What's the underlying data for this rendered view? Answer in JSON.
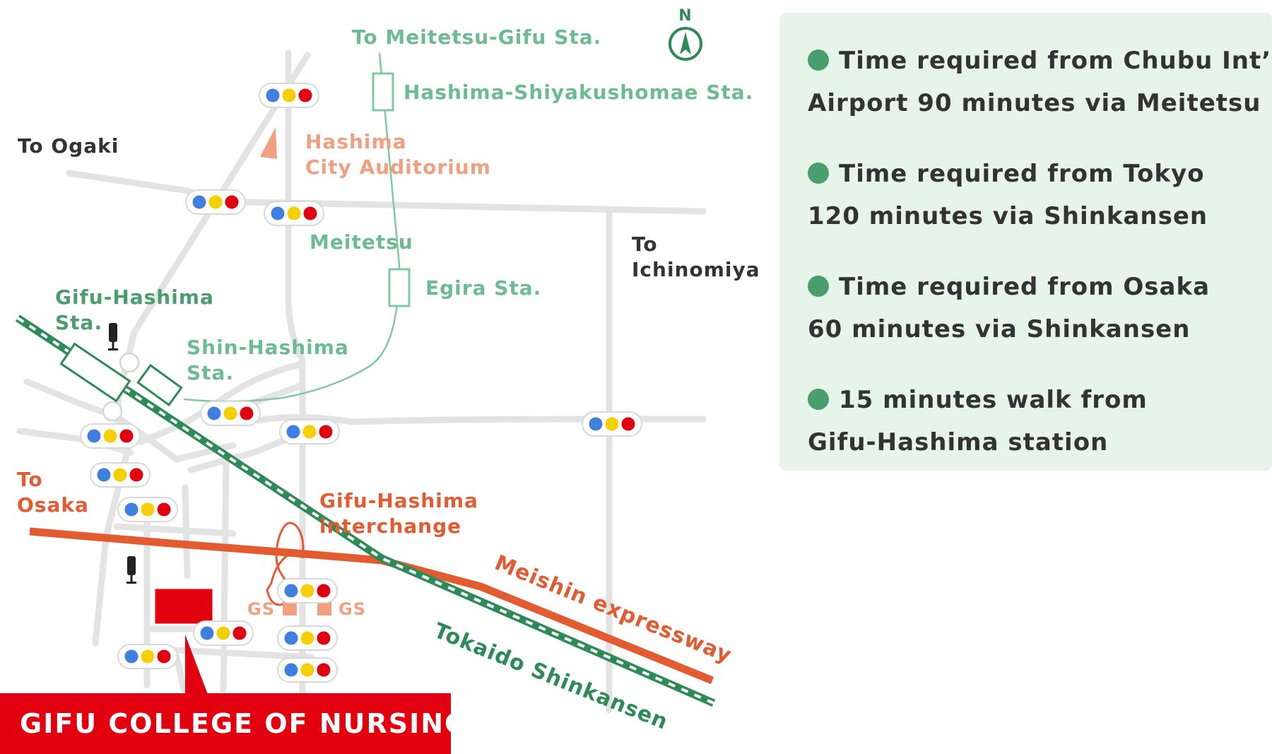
{
  "map": {
    "north_label": "N",
    "stations": {
      "meitetsu_gifu": "To Meitetsu-Gifu Sta.",
      "hashima_shiyakushomae": "Hashima-Shiyakushomae Sta.",
      "egira": "Egira Sta.",
      "gifu_hashima_l1": "Gifu-Hashima",
      "gifu_hashima_l2": "Sta.",
      "shin_hashima_l1": "Shin-Hashima",
      "shin_hashima_l2": "Sta."
    },
    "places": {
      "auditorium_l1": "Hashima",
      "auditorium_l2": "City Auditorium",
      "to_ogaki": "To Ogaki",
      "to_ichinomiya_l1": "To",
      "to_ichinomiya_l2": "Ichinomiya",
      "to_osaka_l1": "To",
      "to_osaka_l2": "Osaka",
      "interchange_l1": "Gifu-Hashima",
      "interchange_l2": "interchange",
      "gas_station": "GS"
    },
    "lines": {
      "meitetsu": "Meitetsu",
      "meishin": "Meishin expressway",
      "shinkansen": "Tokaido Shinkansen"
    },
    "college": "GIFU COLLEGE OF NURSING",
    "colors": {
      "meitetsu": "#7fc8a0",
      "meitetsu_text": "#6dbb91",
      "shinkansen": "#2e8b57",
      "expressway": "#e35b30",
      "road": "#e3e3e3",
      "college": "#e2000f",
      "auditorium": "#f0a080"
    }
  },
  "info": [
    {
      "line1": "Time required from Chubu Int’l",
      "line2": "Airport 90 minutes via Meitetsu"
    },
    {
      "line1": "Time required from Tokyo",
      "line2": "120 minutes via Shinkansen"
    },
    {
      "line1": "Time required from Osaka",
      "line2": "60 minutes via Shinkansen"
    },
    {
      "line1": "15 minutes walk from",
      "line2": "Gifu-Hashima station"
    }
  ]
}
